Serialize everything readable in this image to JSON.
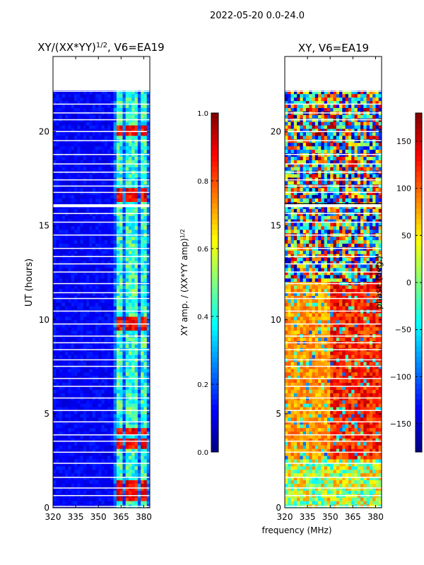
{
  "suptitle": "2022-05-20 0.0-24.0",
  "xlabel_shared": "frequency (MHz)",
  "chart_data": [
    {
      "type": "heatmap",
      "id": "amp",
      "title_main": "XY/(XX*YY)",
      "title_sup": "1/2",
      "title_rest": ", V6=EA19",
      "ylabel": "UT (hours)",
      "xlabel": "",
      "xlim": [
        320,
        384
      ],
      "ylim": [
        0,
        24
      ],
      "xticks": [
        "320",
        "335",
        "350",
        "365",
        "380"
      ],
      "xtick_values": [
        320,
        335,
        350,
        365,
        380
      ],
      "yticks": [
        "0",
        "5",
        "10",
        "15",
        "20"
      ],
      "ytick_values": [
        0,
        5,
        10,
        15,
        20
      ],
      "data_time_range": [
        0.0,
        22.2
      ],
      "active_channel_range": [
        361,
        383
      ],
      "bright_bands_mhz": [
        [
          362.5,
          366.5
        ],
        [
          367.5,
          371.5
        ],
        [
          373,
          376.5
        ],
        [
          378,
          382
        ]
      ],
      "strong_rows_hours": [
        0.6,
        0.9,
        1.2,
        3.3,
        4.0,
        9.5,
        9.9,
        16.4,
        16.7,
        20.0
      ],
      "colorbar": {
        "label_main": "XY amp. / (XX*YY amp)",
        "label_sup": "1/2",
        "range": [
          0.0,
          1.0
        ],
        "ticks": [
          "0.0",
          "0.2",
          "0.4",
          "0.6",
          "0.8",
          "1.0"
        ],
        "tick_values": [
          0.0,
          0.2,
          0.4,
          0.6,
          0.8,
          1.0
        ]
      }
    },
    {
      "type": "heatmap",
      "id": "phase",
      "title_main": "XY, V6=EA19",
      "ylabel": "",
      "xlabel": "frequency (MHz)",
      "xlim": [
        320,
        384
      ],
      "ylim": [
        0,
        24
      ],
      "xticks": [
        "320",
        "335",
        "350",
        "365",
        "380"
      ],
      "xtick_values": [
        320,
        335,
        350,
        365,
        380
      ],
      "yticks": [
        "0",
        "5",
        "10",
        "15",
        "20"
      ],
      "ytick_values": [
        0,
        5,
        10,
        15,
        20
      ],
      "data_time_range": [
        0.0,
        22.2
      ],
      "colorbar": {
        "label": "phase (deg.)",
        "range": [
          -180,
          180
        ],
        "ticks": [
          "−150",
          "−100",
          "−50",
          "0",
          "50",
          "100",
          "150"
        ],
        "tick_values": [
          -150,
          -100,
          -50,
          0,
          50,
          100,
          150
        ]
      }
    }
  ],
  "colormap": "jet"
}
